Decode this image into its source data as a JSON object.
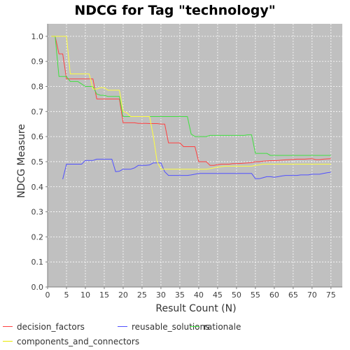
{
  "chart_data": {
    "type": "line",
    "title": "NDCG for Tag \"technology\"",
    "xlabel": "Result Count (N)",
    "ylabel": "NDCG Measure",
    "xlim": [
      0,
      78
    ],
    "ylim": [
      0.0,
      1.05
    ],
    "xticks": [
      "0",
      "5",
      "10",
      "15",
      "20",
      "25",
      "30",
      "35",
      "40",
      "45",
      "50",
      "55",
      "60",
      "65",
      "70",
      "75"
    ],
    "yticks": [
      "0.0",
      "0.1",
      "0.2",
      "0.3",
      "0.4",
      "0.5",
      "0.6",
      "0.7",
      "0.8",
      "0.9",
      "1.0"
    ],
    "grid": true,
    "legend_position": "bottom",
    "plot_background": "#c0c0c0",
    "series": [
      {
        "name": "decision_factors",
        "color": "#ff4040",
        "points": [
          [
            1,
            1.0
          ],
          [
            2,
            1.0
          ],
          [
            3,
            0.93
          ],
          [
            4,
            0.93
          ],
          [
            5,
            0.83
          ],
          [
            6,
            0.83
          ],
          [
            7,
            0.83
          ],
          [
            8,
            0.83
          ],
          [
            9,
            0.83
          ],
          [
            10,
            0.83
          ],
          [
            11,
            0.83
          ],
          [
            12,
            0.83
          ],
          [
            13,
            0.75
          ],
          [
            14,
            0.75
          ],
          [
            15,
            0.75
          ],
          [
            16,
            0.75
          ],
          [
            17,
            0.75
          ],
          [
            18,
            0.75
          ],
          [
            19,
            0.75
          ],
          [
            20,
            0.655
          ],
          [
            21,
            0.655
          ],
          [
            22,
            0.655
          ],
          [
            23,
            0.655
          ],
          [
            24,
            0.653
          ],
          [
            25,
            0.653
          ],
          [
            26,
            0.653
          ],
          [
            27,
            0.652
          ],
          [
            28,
            0.652
          ],
          [
            29,
            0.652
          ],
          [
            30,
            0.65
          ],
          [
            31,
            0.65
          ],
          [
            32,
            0.575
          ],
          [
            33,
            0.575
          ],
          [
            34,
            0.575
          ],
          [
            35,
            0.575
          ],
          [
            36,
            0.56
          ],
          [
            37,
            0.56
          ],
          [
            38,
            0.56
          ],
          [
            39,
            0.56
          ],
          [
            40,
            0.5
          ],
          [
            41,
            0.5
          ],
          [
            42,
            0.5
          ],
          [
            43,
            0.485
          ],
          [
            44,
            0.485
          ],
          [
            45,
            0.488
          ],
          [
            46,
            0.49
          ],
          [
            47,
            0.49
          ],
          [
            48,
            0.49
          ],
          [
            49,
            0.492
          ],
          [
            50,
            0.492
          ],
          [
            51,
            0.493
          ],
          [
            52,
            0.494
          ],
          [
            53,
            0.495
          ],
          [
            54,
            0.496
          ],
          [
            55,
            0.5
          ],
          [
            56,
            0.5
          ],
          [
            57,
            0.502
          ],
          [
            58,
            0.503
          ],
          [
            59,
            0.504
          ],
          [
            60,
            0.504
          ],
          [
            61,
            0.505
          ],
          [
            62,
            0.506
          ],
          [
            63,
            0.507
          ],
          [
            64,
            0.508
          ],
          [
            65,
            0.509
          ],
          [
            66,
            0.51
          ],
          [
            67,
            0.51
          ],
          [
            68,
            0.51
          ],
          [
            69,
            0.511
          ],
          [
            70,
            0.512
          ],
          [
            71,
            0.508
          ],
          [
            72,
            0.508
          ],
          [
            73,
            0.51
          ],
          [
            74,
            0.511
          ],
          [
            75,
            0.512
          ]
        ]
      },
      {
        "name": "reusable_solutions",
        "color": "#5050ff",
        "points": [
          [
            4,
            0.43
          ],
          [
            5,
            0.49
          ],
          [
            6,
            0.49
          ],
          [
            7,
            0.49
          ],
          [
            8,
            0.49
          ],
          [
            9,
            0.49
          ],
          [
            10,
            0.505
          ],
          [
            11,
            0.505
          ],
          [
            12,
            0.505
          ],
          [
            13,
            0.51
          ],
          [
            14,
            0.51
          ],
          [
            15,
            0.51
          ],
          [
            16,
            0.51
          ],
          [
            17,
            0.51
          ],
          [
            18,
            0.46
          ],
          [
            19,
            0.462
          ],
          [
            20,
            0.47
          ],
          [
            21,
            0.47
          ],
          [
            22,
            0.47
          ],
          [
            23,
            0.475
          ],
          [
            24,
            0.485
          ],
          [
            25,
            0.485
          ],
          [
            26,
            0.485
          ],
          [
            27,
            0.487
          ],
          [
            28,
            0.495
          ],
          [
            29,
            0.495
          ],
          [
            30,
            0.495
          ],
          [
            31,
            0.46
          ],
          [
            32,
            0.445
          ],
          [
            33,
            0.445
          ],
          [
            34,
            0.445
          ],
          [
            35,
            0.445
          ],
          [
            36,
            0.445
          ],
          [
            37,
            0.445
          ],
          [
            38,
            0.447
          ],
          [
            39,
            0.45
          ],
          [
            40,
            0.453
          ],
          [
            41,
            0.453
          ],
          [
            42,
            0.453
          ],
          [
            43,
            0.453
          ],
          [
            44,
            0.453
          ],
          [
            45,
            0.453
          ],
          [
            46,
            0.453
          ],
          [
            47,
            0.453
          ],
          [
            48,
            0.453
          ],
          [
            49,
            0.453
          ],
          [
            50,
            0.453
          ],
          [
            51,
            0.453
          ],
          [
            52,
            0.453
          ],
          [
            53,
            0.453
          ],
          [
            54,
            0.453
          ],
          [
            55,
            0.432
          ],
          [
            56,
            0.432
          ],
          [
            57,
            0.436
          ],
          [
            58,
            0.44
          ],
          [
            59,
            0.44
          ],
          [
            60,
            0.438
          ],
          [
            61,
            0.44
          ],
          [
            62,
            0.443
          ],
          [
            63,
            0.445
          ],
          [
            64,
            0.445
          ],
          [
            65,
            0.445
          ],
          [
            66,
            0.445
          ],
          [
            67,
            0.447
          ],
          [
            68,
            0.447
          ],
          [
            69,
            0.447
          ],
          [
            70,
            0.45
          ],
          [
            71,
            0.45
          ],
          [
            72,
            0.45
          ],
          [
            73,
            0.453
          ],
          [
            74,
            0.456
          ],
          [
            75,
            0.458
          ]
        ]
      },
      {
        "name": "rationale",
        "color": "#40e040",
        "points": [
          [
            1,
            1.0
          ],
          [
            2,
            1.0
          ],
          [
            3,
            0.84
          ],
          [
            4,
            0.84
          ],
          [
            5,
            0.84
          ],
          [
            6,
            0.82
          ],
          [
            7,
            0.82
          ],
          [
            8,
            0.82
          ],
          [
            9,
            0.81
          ],
          [
            10,
            0.8
          ],
          [
            11,
            0.8
          ],
          [
            12,
            0.8
          ],
          [
            13,
            0.77
          ],
          [
            14,
            0.765
          ],
          [
            15,
            0.765
          ],
          [
            16,
            0.76
          ],
          [
            17,
            0.76
          ],
          [
            18,
            0.76
          ],
          [
            19,
            0.76
          ],
          [
            20,
            0.68
          ],
          [
            21,
            0.68
          ],
          [
            22,
            0.68
          ],
          [
            23,
            0.68
          ],
          [
            24,
            0.68
          ],
          [
            25,
            0.68
          ],
          [
            26,
            0.68
          ],
          [
            27,
            0.68
          ],
          [
            28,
            0.68
          ],
          [
            29,
            0.68
          ],
          [
            30,
            0.68
          ],
          [
            31,
            0.68
          ],
          [
            32,
            0.68
          ],
          [
            33,
            0.68
          ],
          [
            34,
            0.68
          ],
          [
            35,
            0.68
          ],
          [
            36,
            0.68
          ],
          [
            37,
            0.68
          ],
          [
            38,
            0.61
          ],
          [
            39,
            0.6
          ],
          [
            40,
            0.6
          ],
          [
            41,
            0.6
          ],
          [
            42,
            0.6
          ],
          [
            43,
            0.605
          ],
          [
            44,
            0.605
          ],
          [
            45,
            0.605
          ],
          [
            46,
            0.605
          ],
          [
            47,
            0.605
          ],
          [
            48,
            0.605
          ],
          [
            49,
            0.605
          ],
          [
            50,
            0.605
          ],
          [
            51,
            0.605
          ],
          [
            52,
            0.605
          ],
          [
            53,
            0.607
          ],
          [
            54,
            0.607
          ],
          [
            55,
            0.533
          ],
          [
            56,
            0.533
          ],
          [
            57,
            0.533
          ],
          [
            58,
            0.533
          ],
          [
            59,
            0.525
          ],
          [
            60,
            0.525
          ],
          [
            61,
            0.525
          ],
          [
            62,
            0.525
          ],
          [
            63,
            0.525
          ],
          [
            64,
            0.525
          ],
          [
            65,
            0.525
          ],
          [
            66,
            0.525
          ],
          [
            67,
            0.525
          ],
          [
            68,
            0.525
          ],
          [
            69,
            0.525
          ],
          [
            70,
            0.525
          ],
          [
            71,
            0.525
          ],
          [
            72,
            0.525
          ],
          [
            73,
            0.525
          ],
          [
            74,
            0.525
          ],
          [
            75,
            0.525
          ]
        ]
      },
      {
        "name": "components_and_connectors",
        "color": "#ffff40",
        "points": [
          [
            1,
            1.0
          ],
          [
            2,
            1.0
          ],
          [
            3,
            1.0
          ],
          [
            4,
            1.0
          ],
          [
            5,
            1.0
          ],
          [
            6,
            0.85
          ],
          [
            7,
            0.85
          ],
          [
            8,
            0.85
          ],
          [
            9,
            0.85
          ],
          [
            10,
            0.85
          ],
          [
            11,
            0.85
          ],
          [
            12,
            0.79
          ],
          [
            13,
            0.79
          ],
          [
            14,
            0.795
          ],
          [
            15,
            0.795
          ],
          [
            16,
            0.785
          ],
          [
            17,
            0.785
          ],
          [
            18,
            0.785
          ],
          [
            19,
            0.785
          ],
          [
            20,
            0.7
          ],
          [
            21,
            0.695
          ],
          [
            22,
            0.68
          ],
          [
            23,
            0.68
          ],
          [
            24,
            0.68
          ],
          [
            25,
            0.68
          ],
          [
            26,
            0.68
          ],
          [
            27,
            0.68
          ],
          [
            28,
            0.6
          ],
          [
            29,
            0.5
          ],
          [
            30,
            0.47
          ],
          [
            31,
            0.47
          ],
          [
            32,
            0.47
          ],
          [
            33,
            0.47
          ],
          [
            34,
            0.47
          ],
          [
            35,
            0.47
          ],
          [
            36,
            0.47
          ],
          [
            37,
            0.47
          ],
          [
            38,
            0.47
          ],
          [
            39,
            0.47
          ],
          [
            40,
            0.47
          ],
          [
            41,
            0.47
          ],
          [
            42,
            0.47
          ],
          [
            43,
            0.472
          ],
          [
            44,
            0.475
          ],
          [
            45,
            0.478
          ],
          [
            46,
            0.48
          ],
          [
            47,
            0.482
          ],
          [
            48,
            0.482
          ],
          [
            49,
            0.482
          ],
          [
            50,
            0.482
          ],
          [
            51,
            0.482
          ],
          [
            52,
            0.482
          ],
          [
            53,
            0.482
          ],
          [
            54,
            0.482
          ],
          [
            55,
            0.485
          ],
          [
            56,
            0.487
          ],
          [
            57,
            0.49
          ],
          [
            58,
            0.49
          ],
          [
            59,
            0.49
          ],
          [
            60,
            0.49
          ],
          [
            61,
            0.49
          ],
          [
            62,
            0.49
          ],
          [
            63,
            0.49
          ],
          [
            64,
            0.49
          ],
          [
            65,
            0.49
          ],
          [
            66,
            0.49
          ],
          [
            67,
            0.49
          ],
          [
            68,
            0.49
          ],
          [
            69,
            0.49
          ],
          [
            70,
            0.49
          ],
          [
            71,
            0.49
          ],
          [
            72,
            0.49
          ],
          [
            73,
            0.49
          ],
          [
            74,
            0.49
          ],
          [
            75,
            0.49
          ]
        ]
      }
    ]
  }
}
